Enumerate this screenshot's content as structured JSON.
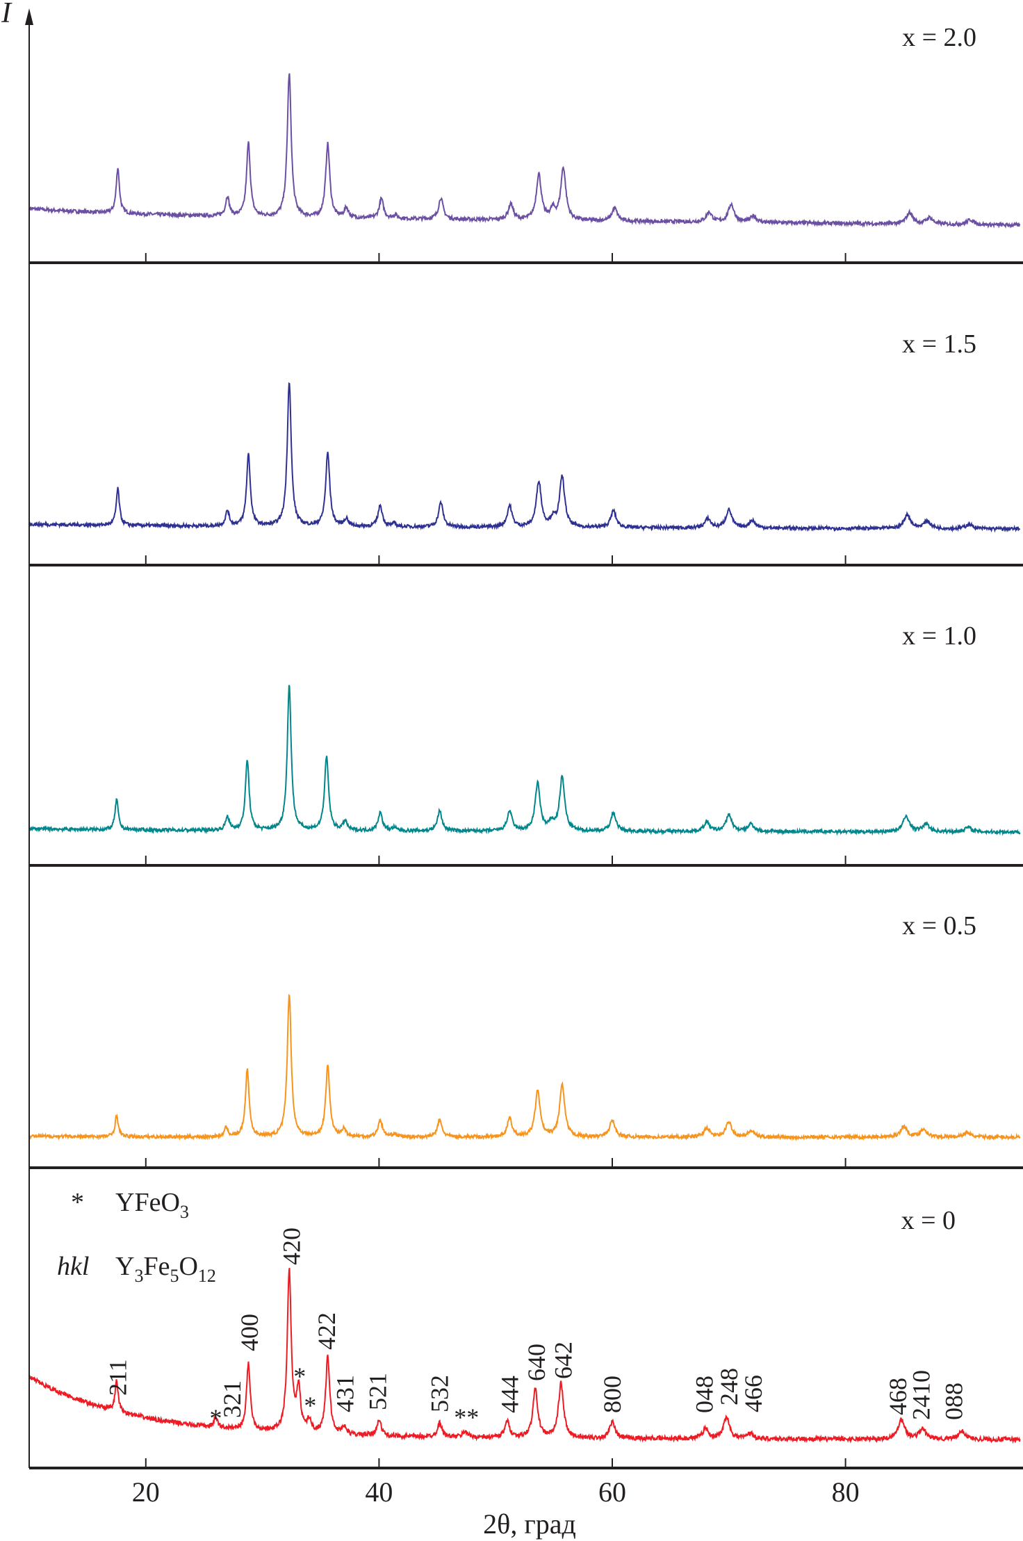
{
  "chart_data": {
    "type": "line",
    "title": "",
    "xlabel": "2θ, град",
    "ylabel": "I",
    "xlim": [
      10,
      95
    ],
    "xticks": [
      20,
      40,
      60,
      80
    ],
    "grid": false,
    "legend": {
      "placement": "top-left of bottom panel",
      "entries": [
        {
          "marker": "*",
          "phase": "YFeO",
          "sub": "3"
        },
        {
          "marker": "hkl",
          "phase": [
            "Y",
            "3",
            "Fe",
            "5",
            "O",
            "12"
          ]
        }
      ]
    },
    "series": [
      {
        "name": "x = 2.0",
        "color": "#6a4fa3",
        "baseline": [
          14,
          6
        ],
        "peaks": [
          [
            17.6,
            28
          ],
          [
            27.0,
            12
          ],
          [
            28.8,
            45
          ],
          [
            32.3,
            88
          ],
          [
            35.6,
            45
          ],
          [
            37.2,
            6
          ],
          [
            40.2,
            12
          ],
          [
            41.4,
            2
          ],
          [
            45.3,
            13
          ],
          [
            51.3,
            10
          ],
          [
            53.7,
            28
          ],
          [
            54.9,
            6
          ],
          [
            55.8,
            32
          ],
          [
            60.2,
            8
          ],
          [
            68.3,
            6
          ],
          [
            70.2,
            11
          ],
          [
            72.1,
            4
          ],
          [
            85.5,
            7
          ],
          [
            87.2,
            4
          ],
          [
            90.7,
            3
          ]
        ]
      },
      {
        "name": "x = 1.5",
        "color": "#2e3192",
        "baseline": [
          4,
          2
        ],
        "peaks": [
          [
            17.6,
            24
          ],
          [
            27.0,
            10
          ],
          [
            28.8,
            47
          ],
          [
            32.3,
            95
          ],
          [
            35.6,
            48
          ],
          [
            37.2,
            5
          ],
          [
            40.1,
            14
          ],
          [
            41.3,
            2
          ],
          [
            45.3,
            16
          ],
          [
            51.2,
            14
          ],
          [
            53.7,
            30
          ],
          [
            54.9,
            5
          ],
          [
            55.7,
            33
          ],
          [
            60.1,
            11
          ],
          [
            68.2,
            6
          ],
          [
            70.0,
            12
          ],
          [
            72.0,
            5
          ],
          [
            85.3,
            9
          ],
          [
            87.0,
            5
          ],
          [
            90.6,
            3
          ]
        ]
      },
      {
        "name": "x = 1.0",
        "color": "#00868b",
        "baseline": [
          4,
          1
        ],
        "peaks": [
          [
            17.5,
            20
          ],
          [
            27.0,
            9
          ],
          [
            28.7,
            46
          ],
          [
            32.3,
            95
          ],
          [
            35.5,
            48
          ],
          [
            37.1,
            6
          ],
          [
            40.1,
            12
          ],
          [
            41.3,
            2
          ],
          [
            45.2,
            13
          ],
          [
            51.2,
            13
          ],
          [
            53.6,
            31
          ],
          [
            54.8,
            5
          ],
          [
            55.7,
            35
          ],
          [
            60.1,
            12
          ],
          [
            68.1,
            6
          ],
          [
            70.0,
            11
          ],
          [
            71.9,
            5
          ],
          [
            85.2,
            10
          ],
          [
            86.9,
            5
          ],
          [
            90.5,
            3
          ]
        ]
      },
      {
        "name": "x = 0.5",
        "color": "#f7941d",
        "baseline": [
          2,
          0
        ],
        "peaks": [
          [
            17.5,
            14
          ],
          [
            26.9,
            6
          ],
          [
            28.7,
            44
          ],
          [
            32.3,
            94
          ],
          [
            35.6,
            46
          ],
          [
            37.0,
            5
          ],
          [
            40.1,
            11
          ],
          [
            41.3,
            2
          ],
          [
            45.2,
            11
          ],
          [
            51.2,
            12
          ],
          [
            53.6,
            30
          ],
          [
            55.7,
            34
          ],
          [
            60.0,
            11
          ],
          [
            68.1,
            6
          ],
          [
            70.0,
            10
          ],
          [
            71.9,
            4
          ],
          [
            85.0,
            7
          ],
          [
            86.7,
            5
          ],
          [
            90.4,
            3
          ]
        ]
      },
      {
        "name": "x = 0",
        "color": "#ed1c24",
        "baseline": [
          30,
          1
        ],
        "peaks": [
          [
            17.5,
            15
          ],
          [
            26.0,
            5
          ],
          [
            28.8,
            33
          ],
          [
            32.3,
            80
          ],
          [
            33.1,
            21
          ],
          [
            34.0,
            6
          ],
          [
            35.6,
            38
          ],
          [
            37.0,
            4
          ],
          [
            40.0,
            8
          ],
          [
            45.2,
            7
          ],
          [
            47.4,
            3
          ],
          [
            51.0,
            8
          ],
          [
            53.4,
            24
          ],
          [
            55.6,
            27
          ],
          [
            60.0,
            8
          ],
          [
            68.0,
            5
          ],
          [
            69.8,
            11
          ],
          [
            71.8,
            3
          ],
          [
            84.8,
            10
          ],
          [
            86.6,
            5
          ],
          [
            90.0,
            4
          ]
        ]
      }
    ],
    "annotations": [
      {
        "text": "211",
        "x": 17.6
      },
      {
        "text": "*",
        "x": 26.0
      },
      {
        "text": "321",
        "x": 27.4
      },
      {
        "text": "400",
        "x": 28.9
      },
      {
        "text": "420",
        "x": 32.5
      },
      {
        "text": "*",
        "x": 33.2
      },
      {
        "text": "*",
        "x": 34.1
      },
      {
        "text": "422",
        "x": 35.5
      },
      {
        "text": "431",
        "x": 37.1
      },
      {
        "text": "521",
        "x": 39.9
      },
      {
        "text": "532",
        "x": 45.2
      },
      {
        "text": "**",
        "x": 47.5
      },
      {
        "text": "444",
        "x": 51.2
      },
      {
        "text": "640",
        "x": 53.5
      },
      {
        "text": "642",
        "x": 55.8
      },
      {
        "text": "800",
        "x": 60.0
      },
      {
        "text": "048",
        "x": 67.9
      },
      {
        "text": "248",
        "x": 70.0
      },
      {
        "text": "466",
        "x": 72.1
      },
      {
        "text": "468",
        "x": 84.5
      },
      {
        "text": "2410",
        "x": 86.5
      },
      {
        "text": "088",
        "x": 89.3
      }
    ]
  }
}
